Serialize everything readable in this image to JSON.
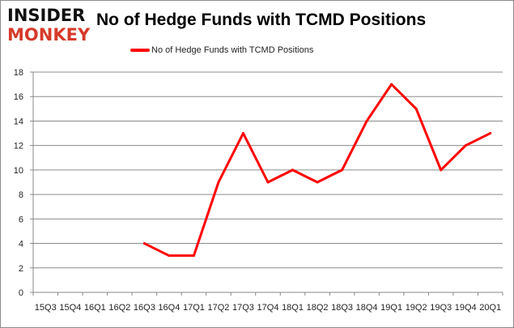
{
  "logo": {
    "line1": "INSIDER",
    "line2": "MONKEY"
  },
  "chart_data": {
    "type": "line",
    "title": "No of Hedge Funds with TCMD Positions",
    "xlabel": "",
    "ylabel": "",
    "categories": [
      "15Q3",
      "15Q4",
      "16Q1",
      "16Q2",
      "16Q3",
      "16Q4",
      "17Q1",
      "17Q2",
      "17Q3",
      "17Q4",
      "18Q1",
      "18Q2",
      "18Q3",
      "18Q4",
      "19Q1",
      "19Q2",
      "19Q3",
      "19Q4",
      "20Q1"
    ],
    "series": [
      {
        "name": "No of Hedge Funds with TCMD Positions",
        "color": "#ff0000",
        "values": [
          null,
          null,
          null,
          null,
          4,
          3,
          3,
          9,
          13,
          9,
          10,
          9,
          10,
          14,
          17,
          15,
          10,
          12,
          13
        ]
      }
    ],
    "ylim": [
      0,
      18
    ],
    "yticks": [
      0,
      2,
      4,
      6,
      8,
      10,
      12,
      14,
      16,
      18
    ],
    "grid": true,
    "legend": "top-center"
  }
}
